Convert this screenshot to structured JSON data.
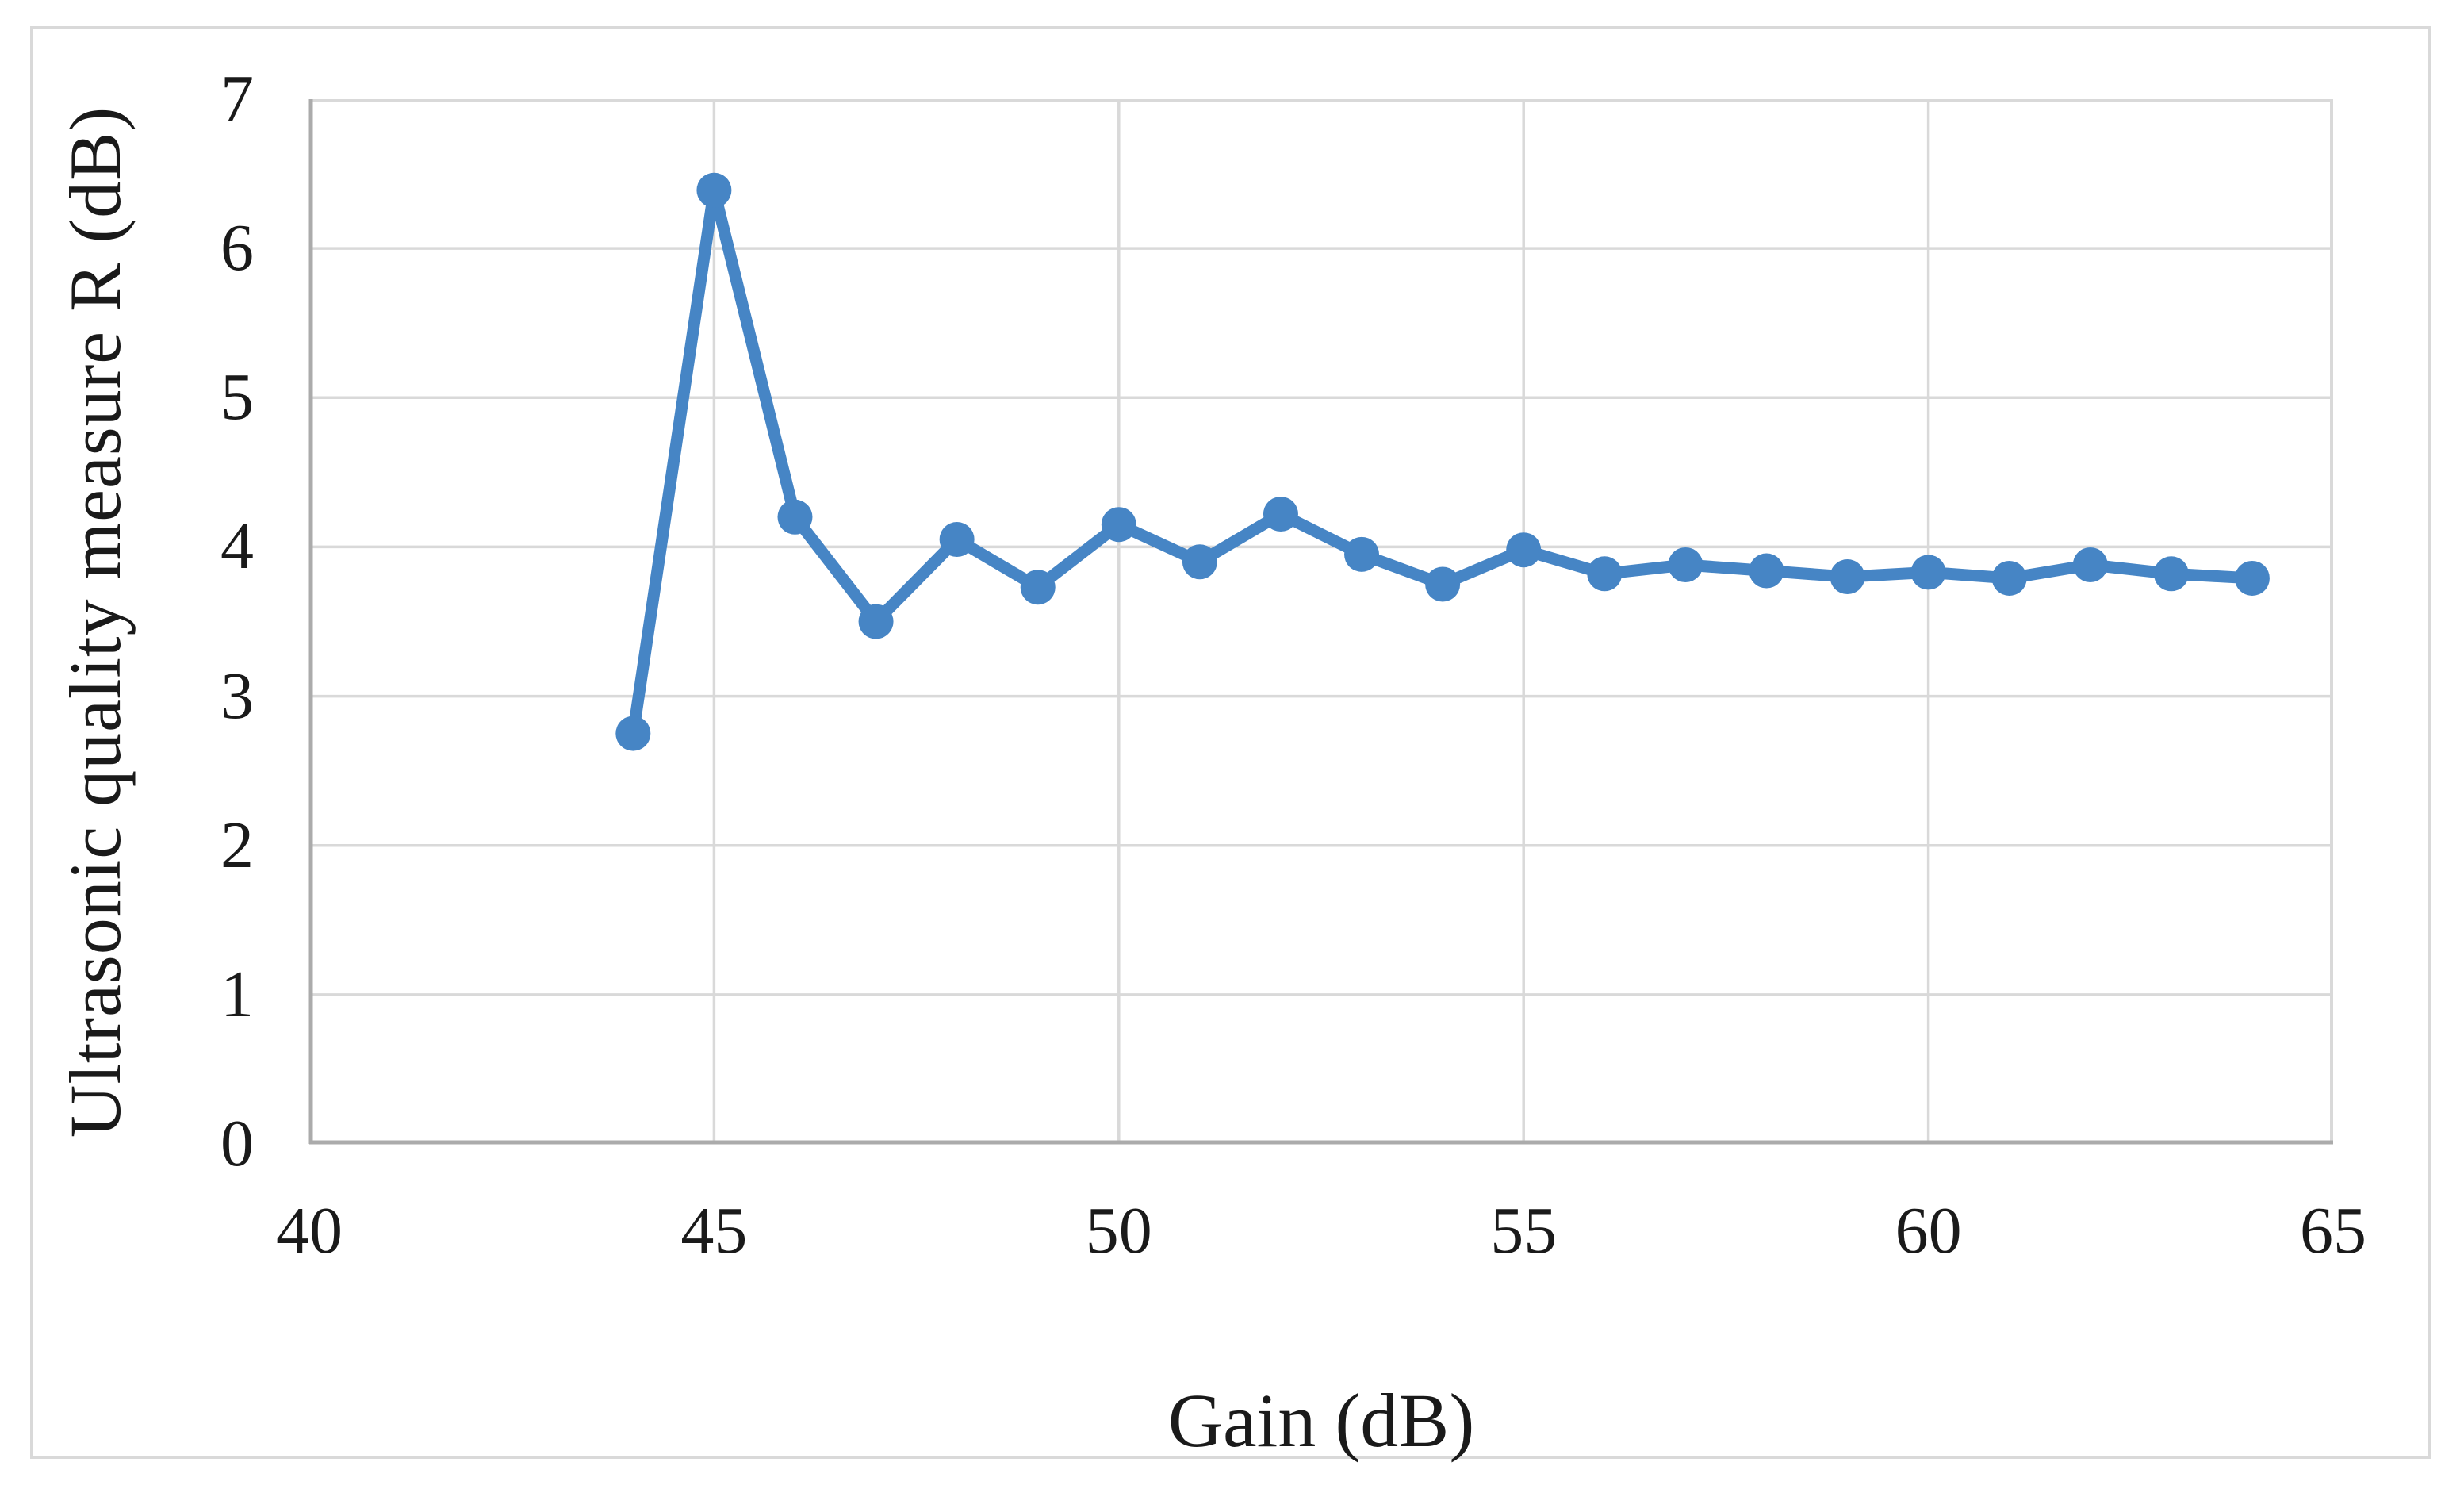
{
  "chart_data": {
    "type": "line",
    "title": "",
    "xlabel": "Gain (dB)",
    "ylabel": "Ultrasonic quality measure R (dB)",
    "xlim": [
      40,
      65
    ],
    "ylim": [
      0,
      7
    ],
    "x_ticks": [
      40,
      45,
      50,
      55,
      60,
      65
    ],
    "y_ticks": [
      0,
      1,
      2,
      3,
      4,
      5,
      6,
      7
    ],
    "grid": true,
    "legend": "none",
    "series": [
      {
        "name": "Ultrasonic quality measure R",
        "x": [
          44,
          45,
          46,
          47,
          48,
          49,
          50,
          51,
          52,
          53,
          54,
          55,
          56,
          57,
          58,
          59,
          60,
          61,
          62,
          63,
          64
        ],
        "values": [
          2.75,
          6.39,
          4.2,
          3.5,
          4.05,
          3.73,
          4.15,
          3.9,
          4.22,
          3.95,
          3.75,
          3.98,
          3.82,
          3.88,
          3.84,
          3.8,
          3.83,
          3.79,
          3.88,
          3.82,
          3.79
        ],
        "marker": "circle"
      }
    ],
    "colors": {
      "series_line": "#4685c5",
      "marker_fill": "#4685c5",
      "gridline": "#d9d9d9",
      "axis_line": "#ababab",
      "plot_border": "#d9d9d9",
      "frame_border": "#d9d9d9",
      "text": "#1a1a1a",
      "background": "#ffffff"
    }
  }
}
